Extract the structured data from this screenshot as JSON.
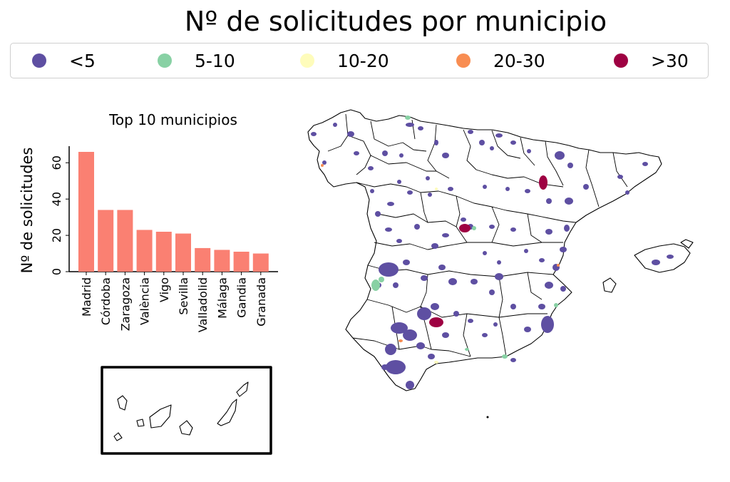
{
  "title": "Nº de solicitudes por municipio",
  "legend": {
    "items": [
      {
        "label": "<5",
        "color": "#5e4fa2"
      },
      {
        "label": "5-10",
        "color": "#88d1a4"
      },
      {
        "label": "10-20",
        "color": "#fefcbb"
      },
      {
        "label": "20-30",
        "color": "#f88d52"
      },
      {
        "label": ">30",
        "color": "#9e0142"
      }
    ]
  },
  "chart_data": {
    "type": "bar",
    "title": "Top 10 municipios",
    "xlabel": "",
    "ylabel": "Nº de solicitudes",
    "categories": [
      "Madrid",
      "Córdoba",
      "Zaragoza",
      "València",
      "Vigo",
      "Sevilla",
      "Valladolid",
      "Málaga",
      "Gandia",
      "Granada"
    ],
    "values": [
      66,
      34,
      34,
      23,
      22,
      21,
      13,
      12,
      11,
      10
    ],
    "yticks": [
      "0",
      "20",
      "40",
      "60"
    ],
    "ylim": [
      0,
      70
    ],
    "color": "#fa8072"
  },
  "map": {
    "inset": "Canarias",
    "border_color": "#000000"
  }
}
